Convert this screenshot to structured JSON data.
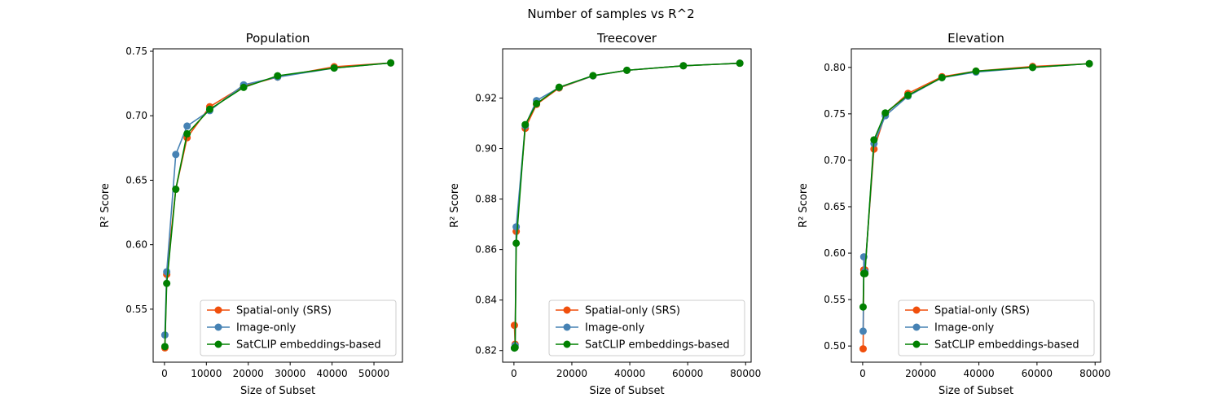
{
  "figure": {
    "suptitle": "Number of samples vs R^2"
  },
  "colors": {
    "spatial": "#f04f0c",
    "image": "#4682b4",
    "satclip": "#008000"
  },
  "chart_data": [
    {
      "type": "line",
      "title": "Population",
      "xlabel": "Size of Subset",
      "ylabel": "R² Score",
      "xlim": [
        -2700,
        56800
      ],
      "ylim": [
        0.5089,
        0.7519
      ],
      "xticks": [
        0,
        10000,
        20000,
        30000,
        40000,
        50000
      ],
      "xtick_labels": [
        "0",
        "10000",
        "20000",
        "30000",
        "40000",
        "50000"
      ],
      "yticks": [
        0.55,
        0.6,
        0.65,
        0.7,
        0.75
      ],
      "ytick_labels": [
        "0.55",
        "0.60",
        "0.65",
        "0.70",
        "0.75"
      ],
      "legend": {
        "position": "lower-right"
      },
      "series": [
        {
          "name": "Spatial-only (SRS)",
          "color": "#f04f0c",
          "x": [
            100,
            540,
            2700,
            5400,
            10800,
            18900,
            27000,
            40500,
            54000
          ],
          "y": [
            0.52,
            0.577,
            0.643,
            0.683,
            0.707,
            0.723,
            0.73,
            0.738,
            0.741
          ]
        },
        {
          "name": "Image-only",
          "color": "#4682b4",
          "x": [
            100,
            540,
            2700,
            5400,
            10800,
            18900,
            27000,
            40500,
            54000
          ],
          "y": [
            0.53,
            0.579,
            0.67,
            0.692,
            0.704,
            0.724,
            0.73,
            0.737,
            0.741
          ]
        },
        {
          "name": "SatCLIP embeddings-based",
          "color": "#008000",
          "x": [
            100,
            540,
            2700,
            5400,
            10800,
            18900,
            27000,
            40500,
            54000
          ],
          "y": [
            0.521,
            0.57,
            0.643,
            0.686,
            0.705,
            0.722,
            0.731,
            0.737,
            0.741
          ]
        }
      ]
    },
    {
      "type": "line",
      "title": "Treecover",
      "xlabel": "Size of Subset",
      "ylabel": "R² Score",
      "xlim": [
        -3900,
        81900
      ],
      "ylim": [
        0.8154,
        0.9395
      ],
      "xticks": [
        0,
        20000,
        40000,
        60000,
        80000
      ],
      "xtick_labels": [
        "0",
        "20000",
        "40000",
        "60000",
        "80000"
      ],
      "yticks": [
        0.82,
        0.84,
        0.86,
        0.88,
        0.9,
        0.92
      ],
      "ytick_labels": [
        "0.82",
        "0.84",
        "0.86",
        "0.88",
        "0.90",
        "0.92"
      ],
      "legend": {
        "position": "lower-right"
      },
      "series": [
        {
          "name": "Spatial-only (SRS)",
          "color": "#f04f0c",
          "x": [
            160,
            400,
            780,
            3900,
            7800,
            15600,
            27300,
            39000,
            58500,
            78000
          ],
          "y": [
            0.83,
            0.8225,
            0.8672,
            0.908,
            0.9175,
            0.924,
            0.9288,
            0.931,
            0.9328,
            0.9338
          ]
        },
        {
          "name": "Image-only",
          "color": "#4682b4",
          "x": [
            160,
            400,
            780,
            3900,
            7800,
            15600,
            27300,
            39000,
            58500,
            78000
          ],
          "y": [
            0.821,
            0.822,
            0.869,
            0.909,
            0.919,
            0.9242,
            0.9288,
            0.931,
            0.9328,
            0.9338
          ]
        },
        {
          "name": "SatCLIP embeddings-based",
          "color": "#008000",
          "x": [
            160,
            400,
            780,
            3900,
            7800,
            15600,
            27300,
            39000,
            58500,
            78000
          ],
          "y": [
            0.821,
            0.8212,
            0.8625,
            0.9095,
            0.9178,
            0.9243,
            0.9289,
            0.931,
            0.9328,
            0.9338
          ]
        }
      ]
    },
    {
      "type": "line",
      "title": "Elevation",
      "xlabel": "Size of Subset",
      "ylabel": "R² Score",
      "xlim": [
        -3900,
        81900
      ],
      "ylim": [
        0.4826,
        0.82
      ],
      "xticks": [
        0,
        20000,
        40000,
        60000,
        80000
      ],
      "xtick_labels": [
        "0",
        "20000",
        "40000",
        "60000",
        "80000"
      ],
      "yticks": [
        0.5,
        0.55,
        0.6,
        0.65,
        0.7,
        0.75,
        0.8
      ],
      "ytick_labels": [
        "0.50",
        "0.55",
        "0.60",
        "0.65",
        "0.70",
        "0.75",
        "0.80"
      ],
      "legend": {
        "position": "lower-right"
      },
      "series": [
        {
          "name": "Spatial-only (SRS)",
          "color": "#f04f0c",
          "x": [
            160,
            400,
            780,
            3900,
            7800,
            15600,
            27300,
            39000,
            58500,
            78000
          ],
          "y": [
            0.497,
            0.582,
            0.582,
            0.712,
            0.75,
            0.772,
            0.79,
            0.796,
            0.801,
            0.804
          ]
        },
        {
          "name": "Image-only",
          "color": "#4682b4",
          "x": [
            160,
            400,
            780,
            3900,
            7800,
            15600,
            27300,
            39000,
            58500,
            78000
          ],
          "y": [
            0.516,
            0.596,
            0.58,
            0.718,
            0.748,
            0.769,
            0.789,
            0.795,
            0.8,
            0.804
          ]
        },
        {
          "name": "SatCLIP embeddings-based",
          "color": "#008000",
          "x": [
            160,
            400,
            780,
            3900,
            7800,
            15600,
            27300,
            39000,
            58500,
            78000
          ],
          "y": [
            0.542,
            0.578,
            0.578,
            0.722,
            0.751,
            0.77,
            0.789,
            0.796,
            0.8,
            0.804
          ]
        }
      ]
    }
  ]
}
